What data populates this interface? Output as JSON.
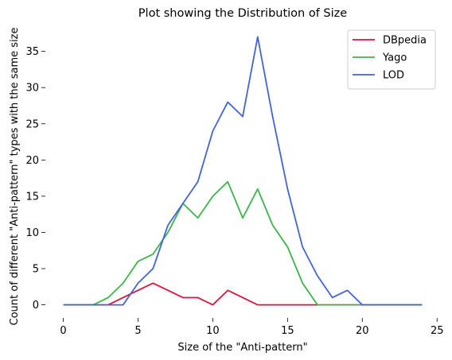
{
  "chart_data": {
    "type": "line",
    "title": "Plot showing the Distribution of Size",
    "xlabel": "Size of the \"Anti-pattern\"",
    "ylabel": "Count of different \"Anti-pattern\" types with the same size",
    "xlim": [
      -1.2,
      25.2
    ],
    "ylim": [
      -1.8,
      38.8
    ],
    "x_ticks": [
      0,
      5,
      10,
      15,
      20,
      25
    ],
    "y_ticks": [
      0,
      5,
      10,
      15,
      20,
      25,
      30,
      35
    ],
    "x_tick_labels": [
      "0",
      "5",
      "10",
      "15",
      "20",
      "25"
    ],
    "y_tick_labels": [
      "0",
      "5",
      "10",
      "15",
      "20",
      "25",
      "30",
      "35"
    ],
    "grid": false,
    "legend_position": "top-right",
    "x": [
      0,
      1,
      2,
      3,
      4,
      5,
      6,
      7,
      8,
      9,
      10,
      11,
      12,
      13,
      14,
      15,
      16,
      17,
      18,
      19,
      20,
      21,
      22,
      23,
      24
    ],
    "series": [
      {
        "name": "DBpedia",
        "color": "#dc143c",
        "values": [
          0,
          0,
          0,
          0,
          1,
          2,
          3,
          2,
          1,
          1,
          0,
          2,
          1,
          0,
          0,
          0,
          0,
          0,
          0,
          0,
          0,
          0,
          0,
          0,
          0
        ]
      },
      {
        "name": "Yago",
        "color": "#3cb44b",
        "values": [
          0,
          0,
          0,
          1,
          3,
          6,
          7,
          10,
          14,
          12,
          15,
          17,
          12,
          16,
          11,
          8,
          3,
          0,
          0,
          0,
          0,
          0,
          0,
          0,
          0
        ]
      },
      {
        "name": "LOD",
        "color": "#4363d8",
        "values": [
          0,
          0,
          0,
          0,
          0,
          3,
          5,
          11,
          14,
          17,
          24,
          28,
          26,
          37,
          26,
          16,
          8,
          4,
          1,
          2,
          0,
          0,
          0,
          0,
          0
        ]
      }
    ]
  }
}
